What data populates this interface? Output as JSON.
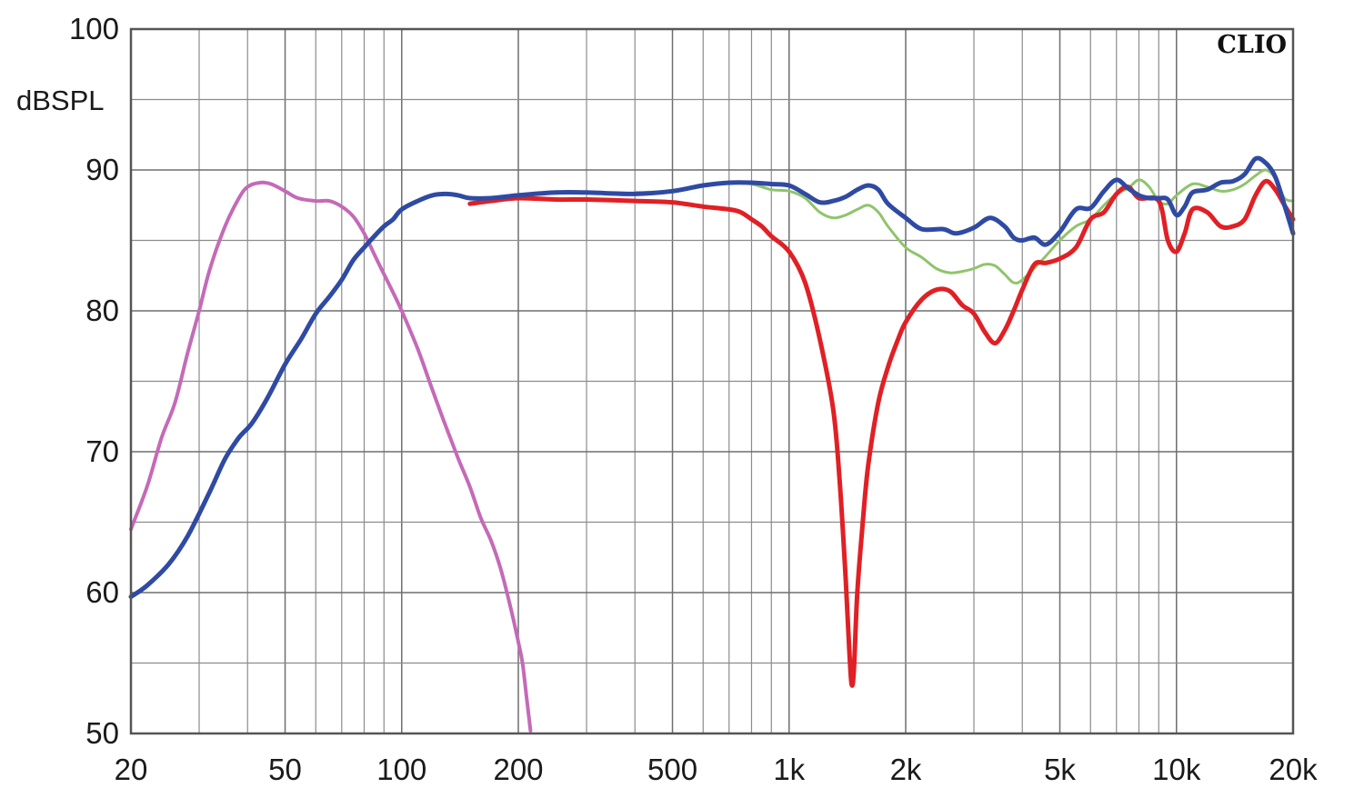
{
  "chart_data": {
    "type": "line",
    "title": "",
    "xlabel": "",
    "ylabel": "dBSPL",
    "brand": "CLIO",
    "x_scale": "log",
    "xlim": [
      20,
      20000
    ],
    "ylim": [
      50,
      100
    ],
    "x_ticks": [
      {
        "value": 20,
        "label": "20"
      },
      {
        "value": 50,
        "label": "50"
      },
      {
        "value": 100,
        "label": "100"
      },
      {
        "value": 200,
        "label": "200"
      },
      {
        "value": 500,
        "label": "500"
      },
      {
        "value": 1000,
        "label": "1k"
      },
      {
        "value": 2000,
        "label": "2k"
      },
      {
        "value": 5000,
        "label": "5k"
      },
      {
        "value": 10000,
        "label": "10k"
      },
      {
        "value": 20000,
        "label": "20k"
      }
    ],
    "y_ticks": [
      {
        "value": 50,
        "label": "50"
      },
      {
        "value": 60,
        "label": "60"
      },
      {
        "value": 70,
        "label": "70"
      },
      {
        "value": 80,
        "label": "80"
      },
      {
        "value": 90,
        "label": "90"
      },
      {
        "value": 100,
        "label": "100"
      }
    ],
    "grid": true,
    "legend": "none",
    "series": [
      {
        "color": "#c46ab8",
        "width": 4,
        "points": [
          [
            20,
            64.5
          ],
          [
            22,
            67.5
          ],
          [
            24,
            71
          ],
          [
            26,
            73.5
          ],
          [
            28,
            77
          ],
          [
            30,
            80
          ],
          [
            32,
            83
          ],
          [
            35,
            86
          ],
          [
            38,
            88
          ],
          [
            40,
            88.8
          ],
          [
            43,
            89.1
          ],
          [
            46,
            89
          ],
          [
            50,
            88.5
          ],
          [
            54,
            88
          ],
          [
            60,
            87.8
          ],
          [
            65,
            87.8
          ],
          [
            70,
            87.4
          ],
          [
            75,
            86.7
          ],
          [
            80,
            85.5
          ],
          [
            85,
            84
          ],
          [
            90,
            82.6
          ],
          [
            95,
            81.3
          ],
          [
            100,
            80
          ],
          [
            110,
            77.3
          ],
          [
            120,
            74.4
          ],
          [
            130,
            71.8
          ],
          [
            140,
            69.5
          ],
          [
            150,
            67.5
          ],
          [
            160,
            65.3
          ],
          [
            170,
            63.7
          ],
          [
            180,
            61.7
          ],
          [
            190,
            59.2
          ],
          [
            200,
            56.5
          ],
          [
            205,
            55
          ],
          [
            210,
            52.6
          ],
          [
            215,
            50.2
          ]
        ]
      },
      {
        "color": "#8fc46b",
        "width": 3,
        "points": [
          [
            400,
            88.4
          ],
          [
            500,
            88.5
          ],
          [
            600,
            88.9
          ],
          [
            700,
            89.1
          ],
          [
            800,
            89
          ],
          [
            900,
            88.6
          ],
          [
            1000,
            88.5
          ],
          [
            1100,
            88
          ],
          [
            1200,
            87
          ],
          [
            1300,
            86.6
          ],
          [
            1400,
            86.8
          ],
          [
            1500,
            87.2
          ],
          [
            1600,
            87.5
          ],
          [
            1700,
            87
          ],
          [
            1800,
            86
          ],
          [
            2000,
            84.5
          ],
          [
            2200,
            83.8
          ],
          [
            2400,
            83
          ],
          [
            2600,
            82.7
          ],
          [
            2800,
            82.8
          ],
          [
            3000,
            83
          ],
          [
            3200,
            83.3
          ],
          [
            3400,
            83.2
          ],
          [
            3600,
            82.6
          ],
          [
            3800,
            82
          ],
          [
            4000,
            82.2
          ],
          [
            4500,
            83.6
          ],
          [
            5000,
            85
          ],
          [
            5500,
            86
          ],
          [
            6000,
            86.5
          ],
          [
            6500,
            87.5
          ],
          [
            7000,
            88.3
          ],
          [
            7500,
            88.7
          ],
          [
            8000,
            89.3
          ],
          [
            8500,
            88.8
          ],
          [
            9000,
            87.8
          ],
          [
            9500,
            87.6
          ],
          [
            10000,
            88.2
          ],
          [
            11000,
            89
          ],
          [
            12000,
            88.8
          ],
          [
            13000,
            88.5
          ],
          [
            14000,
            88.6
          ],
          [
            15000,
            89
          ],
          [
            16000,
            89.6
          ],
          [
            17000,
            90
          ],
          [
            18000,
            89.4
          ],
          [
            19000,
            88
          ],
          [
            20000,
            87.8
          ]
        ]
      },
      {
        "color": "#e02025",
        "width": 5,
        "points": [
          [
            150,
            87.6
          ],
          [
            170,
            87.8
          ],
          [
            200,
            88
          ],
          [
            250,
            87.9
          ],
          [
            300,
            87.9
          ],
          [
            400,
            87.8
          ],
          [
            500,
            87.7
          ],
          [
            600,
            87.4
          ],
          [
            700,
            87.2
          ],
          [
            750,
            87
          ],
          [
            800,
            86.5
          ],
          [
            850,
            86
          ],
          [
            900,
            85.3
          ],
          [
            1000,
            84.2
          ],
          [
            1100,
            82
          ],
          [
            1200,
            78
          ],
          [
            1300,
            73
          ],
          [
            1350,
            68
          ],
          [
            1400,
            61
          ],
          [
            1430,
            56
          ],
          [
            1450,
            53.5
          ],
          [
            1470,
            54.5
          ],
          [
            1500,
            60
          ],
          [
            1550,
            65
          ],
          [
            1600,
            69
          ],
          [
            1700,
            73.5
          ],
          [
            1800,
            76
          ],
          [
            1900,
            77.8
          ],
          [
            2000,
            79.2
          ],
          [
            2200,
            80.8
          ],
          [
            2400,
            81.5
          ],
          [
            2600,
            81.4
          ],
          [
            2800,
            80.4
          ],
          [
            3000,
            79.8
          ],
          [
            3200,
            78.5
          ],
          [
            3400,
            77.7
          ],
          [
            3600,
            78.6
          ],
          [
            3800,
            80
          ],
          [
            4000,
            81.5
          ],
          [
            4300,
            83.3
          ],
          [
            4600,
            83.4
          ],
          [
            5000,
            83.7
          ],
          [
            5500,
            84.5
          ],
          [
            6000,
            86.5
          ],
          [
            6500,
            87
          ],
          [
            7000,
            88.3
          ],
          [
            7500,
            88.8
          ],
          [
            8000,
            88
          ],
          [
            9000,
            87.8
          ],
          [
            9500,
            85
          ],
          [
            10000,
            84.2
          ],
          [
            10500,
            85.5
          ],
          [
            11000,
            87.2
          ],
          [
            12000,
            87
          ],
          [
            13000,
            86
          ],
          [
            14000,
            86
          ],
          [
            15000,
            86.5
          ],
          [
            16000,
            88.2
          ],
          [
            17000,
            89.2
          ],
          [
            18000,
            88.6
          ],
          [
            19000,
            87.5
          ],
          [
            20000,
            86.5
          ]
        ]
      },
      {
        "color": "#2f4aa3",
        "width": 5,
        "points": [
          [
            20,
            59.7
          ],
          [
            22,
            60.5
          ],
          [
            25,
            62
          ],
          [
            28,
            64
          ],
          [
            32,
            67.2
          ],
          [
            35,
            69.5
          ],
          [
            38,
            71
          ],
          [
            41,
            72
          ],
          [
            45,
            73.8
          ],
          [
            50,
            76.2
          ],
          [
            55,
            78
          ],
          [
            60,
            79.8
          ],
          [
            65,
            81
          ],
          [
            70,
            82.2
          ],
          [
            75,
            83.6
          ],
          [
            80,
            84.5
          ],
          [
            85,
            85.3
          ],
          [
            90,
            86
          ],
          [
            95,
            86.5
          ],
          [
            100,
            87.2
          ],
          [
            110,
            87.8
          ],
          [
            120,
            88.2
          ],
          [
            130,
            88.3
          ],
          [
            140,
            88.2
          ],
          [
            150,
            88
          ],
          [
            170,
            88
          ],
          [
            200,
            88.2
          ],
          [
            250,
            88.4
          ],
          [
            300,
            88.4
          ],
          [
            400,
            88.3
          ],
          [
            500,
            88.5
          ],
          [
            600,
            88.9
          ],
          [
            700,
            89.1
          ],
          [
            800,
            89.1
          ],
          [
            900,
            89
          ],
          [
            1000,
            88.9
          ],
          [
            1100,
            88.3
          ],
          [
            1200,
            87.7
          ],
          [
            1300,
            87.8
          ],
          [
            1400,
            88.1
          ],
          [
            1500,
            88.6
          ],
          [
            1600,
            88.9
          ],
          [
            1700,
            88.6
          ],
          [
            1800,
            87.6
          ],
          [
            2000,
            86.6
          ],
          [
            2200,
            85.8
          ],
          [
            2500,
            85.8
          ],
          [
            2700,
            85.5
          ],
          [
            3000,
            85.9
          ],
          [
            3300,
            86.6
          ],
          [
            3600,
            86
          ],
          [
            3800,
            85.2
          ],
          [
            4000,
            85
          ],
          [
            4300,
            85.2
          ],
          [
            4600,
            84.7
          ],
          [
            5000,
            85.6
          ],
          [
            5500,
            87.2
          ],
          [
            6000,
            87.3
          ],
          [
            6500,
            88.5
          ],
          [
            7000,
            89.3
          ],
          [
            7500,
            88.7
          ],
          [
            8000,
            88.2
          ],
          [
            8500,
            88
          ],
          [
            9000,
            88
          ],
          [
            9500,
            87.9
          ],
          [
            10000,
            86.8
          ],
          [
            10500,
            87.4
          ],
          [
            11000,
            88.4
          ],
          [
            12000,
            88.6
          ],
          [
            13000,
            89.1
          ],
          [
            14000,
            89.2
          ],
          [
            15000,
            89.7
          ],
          [
            16000,
            90.8
          ],
          [
            17000,
            90.5
          ],
          [
            18000,
            89.5
          ],
          [
            19000,
            87.5
          ],
          [
            20000,
            85.5
          ]
        ]
      }
    ]
  }
}
